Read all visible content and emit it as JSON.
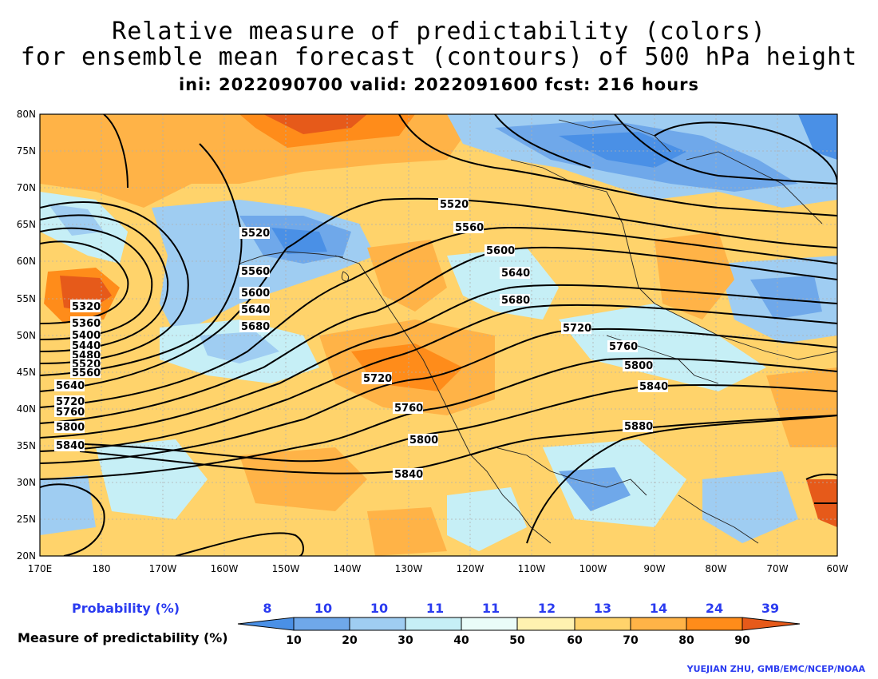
{
  "title": {
    "line1": "Relative measure of predictability (colors)",
    "line2": "for ensemble mean forecast (contours) of 500 hPa height",
    "line3": "ini: 2022090700 valid: 2022091600 fcst: 216 hours"
  },
  "map": {
    "lat_labels": [
      "80N",
      "75N",
      "70N",
      "65N",
      "60N",
      "55N",
      "50N",
      "45N",
      "40N",
      "35N",
      "30N",
      "25N",
      "20N"
    ],
    "lon_labels": [
      "170E",
      "180",
      "170W",
      "160W",
      "150W",
      "140W",
      "130W",
      "120W",
      "110W",
      "100W",
      "90W",
      "80W",
      "70W",
      "60W"
    ],
    "contour_labels": [
      "5320",
      "5360",
      "5400",
      "5440",
      "5480",
      "5520",
      "5560",
      "5640",
      "5720",
      "5760",
      "5800",
      "5840",
      "5520",
      "5560",
      "5600",
      "5640",
      "5680",
      "5720",
      "5760",
      "5800",
      "5840",
      "5520",
      "5560",
      "5600",
      "5640",
      "5680",
      "5720",
      "5760",
      "5800",
      "5840",
      "5880"
    ]
  },
  "colorbar": {
    "probability_label": "Probability (%)",
    "measure_label": "Measure of predictability (%)",
    "probabilities": [
      "8",
      "10",
      "10",
      "11",
      "11",
      "12",
      "13",
      "14",
      "24",
      "39"
    ],
    "ticks": [
      "10",
      "20",
      "30",
      "40",
      "50",
      "60",
      "70",
      "80",
      "90"
    ],
    "colors": [
      "#4a90e6",
      "#6fa8ea",
      "#9fcdf2",
      "#c6eff6",
      "#eafcf8",
      "#fff2b0",
      "#ffd36b",
      "#ffb347",
      "#ff8c1a",
      "#e65a1a"
    ]
  },
  "credit": "YUEJIAN ZHU, GMB/EMC/NCEP/NOAA"
}
